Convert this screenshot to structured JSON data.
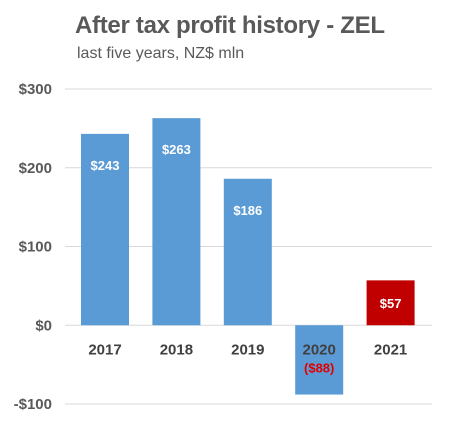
{
  "chart_data": {
    "type": "bar",
    "title": "After tax profit history - ZEL",
    "subtitle": "last five years, NZ$ mln",
    "categories": [
      "2017",
      "2018",
      "2019",
      "2020",
      "2021"
    ],
    "values": [
      243,
      263,
      186,
      -88,
      57
    ],
    "data_labels": [
      "$243",
      "$263",
      "$186",
      "($88)",
      "$57"
    ],
    "bar_colors": [
      "#5b9bd5",
      "#5b9bd5",
      "#5b9bd5",
      "#5b9bd5",
      "#c00000"
    ],
    "label_colors": [
      "#ffffff",
      "#ffffff",
      "#ffffff",
      "#e00000",
      "#ffffff"
    ],
    "ylim": [
      -100,
      300
    ],
    "yticks": [
      300,
      200,
      100,
      0,
      -100
    ],
    "ytick_labels": [
      "$300",
      "$200",
      "$100",
      "$0",
      "-$100"
    ],
    "grid": true,
    "legend": "none",
    "colors": {
      "grid": "#d9d9d9",
      "title": "#595959"
    }
  }
}
